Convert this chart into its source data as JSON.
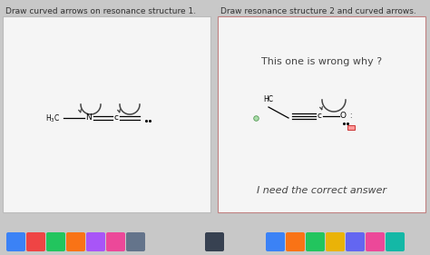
{
  "left_title": "Draw curved arrows on resonance structure 1.",
  "right_title": "Draw resonance structure 2 and curved arrows.",
  "right_text1": "This one is wrong why ?",
  "right_text2": "I need the correct answer",
  "bg_color": "#c8c8c8",
  "left_panel_bg": "#f5f5f5",
  "right_panel_bg": "#f5f5f5",
  "left_border": "#bbbbbb",
  "right_border": "#c08080",
  "text_color": "#333333",
  "title_fontsize": 6.5,
  "body_fontsize": 8.0,
  "label_fontsize": 5.5,
  "dock_color": "#1a1a1a"
}
